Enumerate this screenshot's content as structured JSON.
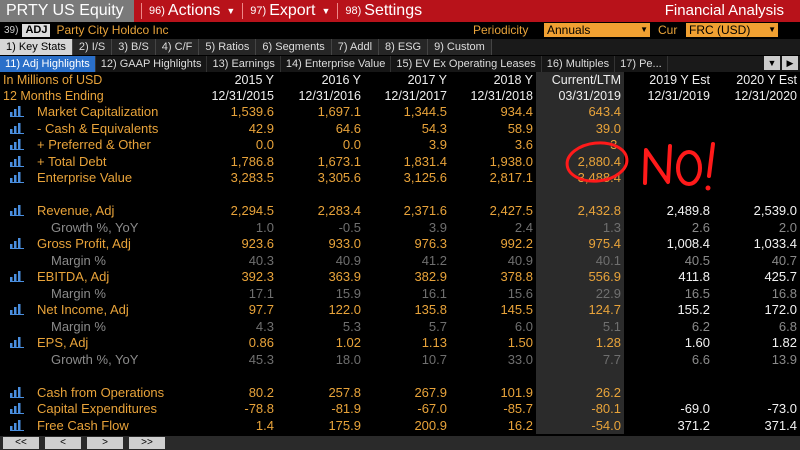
{
  "header": {
    "ticker": "PRTY US Equity",
    "menus": [
      {
        "num": "96)",
        "label": "Actions"
      },
      {
        "num": "97)",
        "label": "Export"
      },
      {
        "num": "98)",
        "label": "Settings"
      }
    ],
    "title": "Financial Analysis"
  },
  "subheader": {
    "num": "39)",
    "badge": "ADJ",
    "company": "Party City Holdco Inc",
    "periodicity_label": "Periodicity",
    "periodicity_value": "Annuals",
    "cur_label": "Cur",
    "cur_value": "FRC (USD)"
  },
  "tabs": [
    "1) Key Stats",
    "2) I/S",
    "3) B/S",
    "4) C/F",
    "5) Ratios",
    "6) Segments",
    "7) Addl",
    "8) ESG",
    "9) Custom"
  ],
  "subtabs": [
    "11) Adj Highlights",
    "12) GAAP Highlights",
    "13) Earnings",
    "14) Enterprise Value",
    "15) EV Ex Operating Leases",
    "16) Multiples",
    "17) Pe..."
  ],
  "table": {
    "col_header1": [
      "In Millions of USD",
      "2015 Y",
      "2016 Y",
      "2017 Y",
      "2018 Y",
      "Current/LTM",
      "2019 Y Est",
      "2020 Y Est"
    ],
    "col_header2": [
      "12 Months Ending",
      "12/31/2015",
      "12/31/2016",
      "12/31/2017",
      "12/31/2018",
      "03/31/2019",
      "12/31/2019",
      "12/31/2020"
    ],
    "rows": [
      {
        "label": "Market Capitalization",
        "icon": true,
        "sub": false,
        "v": [
          "1,539.6",
          "1,697.1",
          "1,344.5",
          "934.4",
          "643.4",
          "",
          ""
        ]
      },
      {
        "label": "- Cash & Equivalents",
        "icon": true,
        "sub": false,
        "v": [
          "42.9",
          "64.6",
          "54.3",
          "58.9",
          "39.0",
          "",
          ""
        ]
      },
      {
        "label": "+ Preferred & Other",
        "icon": true,
        "sub": false,
        "v": [
          "0.0",
          "0.0",
          "3.9",
          "3.6",
          "3.",
          "",
          ""
        ]
      },
      {
        "label": "+ Total Debt",
        "icon": true,
        "sub": false,
        "v": [
          "1,786.8",
          "1,673.1",
          "1,831.4",
          "1,938.0",
          "2,880.4",
          "",
          ""
        ]
      },
      {
        "label": "Enterprise Value",
        "icon": true,
        "sub": false,
        "v": [
          "3,283.5",
          "3,305.6",
          "3,125.6",
          "2,817.1",
          "3,488.4",
          "",
          ""
        ]
      },
      {
        "label": "",
        "icon": false,
        "sub": false,
        "v": [
          "",
          "",
          "",
          "",
          "",
          "",
          ""
        ]
      },
      {
        "label": "Revenue, Adj",
        "icon": true,
        "sub": false,
        "v": [
          "2,294.5",
          "2,283.4",
          "2,371.6",
          "2,427.5",
          "2,432.8",
          "2,489.8",
          "2,539.0"
        ]
      },
      {
        "label": "Growth %, YoY",
        "icon": false,
        "sub": true,
        "v": [
          "1.0",
          "-0.5",
          "3.9",
          "2.4",
          "1.3",
          "2.6",
          "2.0"
        ]
      },
      {
        "label": "Gross Profit, Adj",
        "icon": true,
        "sub": false,
        "v": [
          "923.6",
          "933.0",
          "976.3",
          "992.2",
          "975.4",
          "1,008.4",
          "1,033.4"
        ]
      },
      {
        "label": "Margin %",
        "icon": false,
        "sub": true,
        "v": [
          "40.3",
          "40.9",
          "41.2",
          "40.9",
          "40.1",
          "40.5",
          "40.7"
        ]
      },
      {
        "label": "EBITDA, Adj",
        "icon": true,
        "sub": false,
        "v": [
          "392.3",
          "363.9",
          "382.9",
          "378.8",
          "556.9",
          "411.8",
          "425.7"
        ]
      },
      {
        "label": "Margin %",
        "icon": false,
        "sub": true,
        "v": [
          "17.1",
          "15.9",
          "16.1",
          "15.6",
          "22.9",
          "16.5",
          "16.8"
        ]
      },
      {
        "label": "Net Income, Adj",
        "icon": true,
        "sub": false,
        "v": [
          "97.7",
          "122.0",
          "135.8",
          "145.5",
          "124.7",
          "155.2",
          "172.0"
        ]
      },
      {
        "label": "Margin %",
        "icon": false,
        "sub": true,
        "v": [
          "4.3",
          "5.3",
          "5.7",
          "6.0",
          "5.1",
          "6.2",
          "6.8"
        ]
      },
      {
        "label": "EPS, Adj",
        "icon": true,
        "sub": false,
        "v": [
          "0.86",
          "1.02",
          "1.13",
          "1.50",
          "1.28",
          "1.60",
          "1.82"
        ]
      },
      {
        "label": "Growth %, YoY",
        "icon": false,
        "sub": true,
        "v": [
          "45.3",
          "18.0",
          "10.7",
          "33.0",
          "7.7",
          "6.6",
          "13.9"
        ]
      },
      {
        "label": "",
        "icon": false,
        "sub": false,
        "v": [
          "",
          "",
          "",
          "",
          "",
          "",
          ""
        ]
      },
      {
        "label": "Cash from Operations",
        "icon": true,
        "sub": false,
        "v": [
          "80.2",
          "257.8",
          "267.9",
          "101.9",
          "26.2",
          "",
          ""
        ]
      },
      {
        "label": "Capital Expenditures",
        "icon": true,
        "sub": false,
        "v": [
          "-78.8",
          "-81.9",
          "-67.0",
          "-85.7",
          "-80.1",
          "-69.0",
          "-73.0"
        ]
      },
      {
        "label": "Free Cash Flow",
        "icon": true,
        "sub": false,
        "v": [
          "1.4",
          "175.9",
          "200.9",
          "16.2",
          "-54.0",
          "371.2",
          "371.4"
        ]
      }
    ]
  },
  "annotation": {
    "text": "NO!",
    "color": "#ff1a1a"
  },
  "bottom_nav": [
    "<<",
    "<",
    ">",
    ">>"
  ],
  "colors": {
    "accent": "#e8a33a",
    "topbar": "#b8121a",
    "active_tab": "#2a6fc9"
  }
}
